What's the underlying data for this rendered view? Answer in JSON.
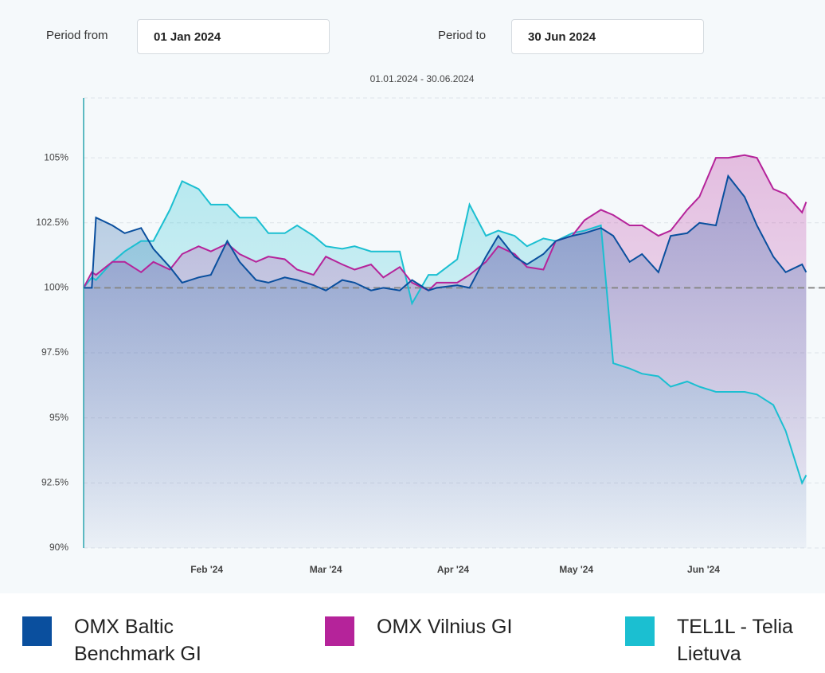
{
  "controls": {
    "from_label": "Period from",
    "from_value": "01 Jan 2024",
    "to_label": "Period to",
    "to_value": "30 Jun 2024"
  },
  "chart_data": {
    "type": "line",
    "subtitle": "01.01.2024 - 30.06.2024",
    "x": [
      "2024-01-02",
      "2024-01-04",
      "2024-01-05",
      "2024-01-09",
      "2024-01-12",
      "2024-01-16",
      "2024-01-19",
      "2024-01-23",
      "2024-01-26",
      "2024-01-30",
      "2024-02-02",
      "2024-02-06",
      "2024-02-09",
      "2024-02-13",
      "2024-02-16",
      "2024-02-20",
      "2024-02-23",
      "2024-02-27",
      "2024-03-01",
      "2024-03-05",
      "2024-03-08",
      "2024-03-12",
      "2024-03-15",
      "2024-03-19",
      "2024-03-22",
      "2024-03-26",
      "2024-03-28",
      "2024-04-02",
      "2024-04-05",
      "2024-04-09",
      "2024-04-12",
      "2024-04-16",
      "2024-04-19",
      "2024-04-23",
      "2024-04-26",
      "2024-04-30",
      "2024-05-03",
      "2024-05-07",
      "2024-05-10",
      "2024-05-14",
      "2024-05-17",
      "2024-05-21",
      "2024-05-24",
      "2024-05-28",
      "2024-05-31",
      "2024-06-04",
      "2024-06-07",
      "2024-06-11",
      "2024-06-14",
      "2024-06-18",
      "2024-06-21",
      "2024-06-25",
      "2024-06-26"
    ],
    "series": [
      {
        "name": "OMX Baltic Benchmark GI",
        "color": "#0a4f9e",
        "values": [
          100.0,
          100.0,
          102.7,
          102.4,
          102.1,
          102.3,
          101.5,
          100.8,
          100.2,
          100.4,
          100.5,
          101.8,
          101.0,
          100.3,
          100.2,
          100.4,
          100.3,
          100.1,
          99.9,
          100.3,
          100.2,
          99.9,
          100.0,
          99.9,
          100.3,
          99.9,
          100.0,
          100.1,
          100.0,
          101.2,
          102.0,
          101.2,
          100.9,
          101.3,
          101.8,
          102.0,
          102.1,
          102.3,
          102.0,
          101.0,
          101.3,
          100.6,
          102.0,
          102.1,
          102.5,
          102.4,
          104.3,
          103.5,
          102.4,
          101.2,
          100.6,
          100.9,
          100.6
        ]
      },
      {
        "name": "OMX Vilnius GI",
        "color": "#b5239a",
        "values": [
          100.0,
          100.6,
          100.5,
          101.0,
          101.0,
          100.6,
          101.0,
          100.7,
          101.3,
          101.6,
          101.4,
          101.7,
          101.3,
          101.0,
          101.2,
          101.1,
          100.7,
          100.5,
          101.2,
          100.9,
          100.7,
          100.9,
          100.4,
          100.8,
          100.2,
          99.9,
          100.2,
          100.2,
          100.5,
          101.0,
          101.6,
          101.3,
          100.8,
          100.7,
          101.8,
          102.0,
          102.6,
          103.0,
          102.8,
          102.4,
          102.4,
          102.0,
          102.2,
          103.0,
          103.5,
          105.0,
          105.0,
          105.1,
          105.0,
          103.8,
          103.6,
          102.9,
          103.3
        ]
      },
      {
        "name": "TEL1L - Telia Lietuva",
        "color": "#1bbfd1",
        "values": [
          100.0,
          100.4,
          100.3,
          101.0,
          101.4,
          101.8,
          101.8,
          103.0,
          104.1,
          103.8,
          103.2,
          103.2,
          102.7,
          102.7,
          102.1,
          102.1,
          102.4,
          102.0,
          101.6,
          101.5,
          101.6,
          101.4,
          101.4,
          101.4,
          99.4,
          100.5,
          100.5,
          101.1,
          103.2,
          102.0,
          102.2,
          102.0,
          101.6,
          101.9,
          101.8,
          102.1,
          102.2,
          102.4,
          97.1,
          96.9,
          96.7,
          96.6,
          96.2,
          96.4,
          96.2,
          96.0,
          96.0,
          96.0,
          95.9,
          95.5,
          94.5,
          92.5,
          92.8
        ]
      }
    ],
    "xlim": [
      "2024-01-02",
      "2024-06-30"
    ],
    "xticks": [
      {
        "value": "2024-02-01",
        "label": "Feb '24"
      },
      {
        "value": "2024-03-01",
        "label": "Mar '24"
      },
      {
        "value": "2024-04-01",
        "label": "Apr '24"
      },
      {
        "value": "2024-05-01",
        "label": "May '24"
      },
      {
        "value": "2024-06-01",
        "label": "Jun '24"
      }
    ],
    "ylim": [
      90,
      107.3
    ],
    "yticks": [
      {
        "value": 90,
        "label": "90%"
      },
      {
        "value": 92.5,
        "label": "92.5%"
      },
      {
        "value": 95,
        "label": "95%"
      },
      {
        "value": 97.5,
        "label": "97.5%"
      },
      {
        "value": 100,
        "label": "100%"
      },
      {
        "value": 102.5,
        "label": "102.5%"
      },
      {
        "value": 105,
        "label": "105%"
      }
    ],
    "reference_line": 100,
    "grid": true
  }
}
